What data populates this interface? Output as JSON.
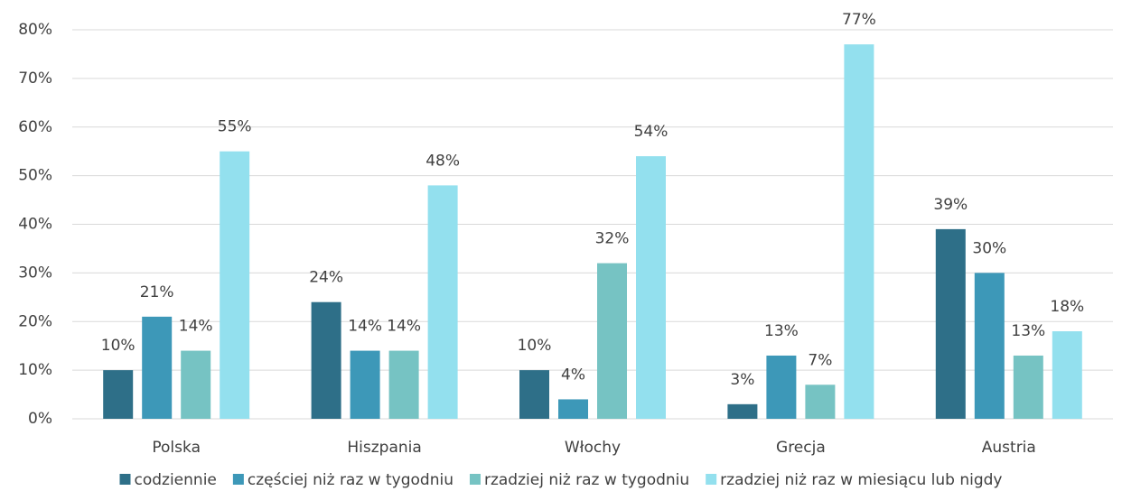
{
  "chart_data": {
    "type": "bar",
    "categories": [
      "Polska",
      "Hiszpania",
      "Włochy",
      "Grecja",
      "Austria"
    ],
    "series": [
      {
        "name": "codziennie",
        "color": "#2e6f88",
        "values": [
          10,
          24,
          10,
          3,
          39
        ],
        "value_labels": [
          "10%",
          "24%",
          "10%",
          "3%",
          "39%"
        ]
      },
      {
        "name": "częściej niż raz w tygodniu",
        "color": "#3d98b8",
        "values": [
          21,
          14,
          4,
          13,
          30
        ],
        "value_labels": [
          "21%",
          "14%",
          "4%",
          "13%",
          "30%"
        ]
      },
      {
        "name": "rzadziej niż raz w tygodniu",
        "color": "#76c3c3",
        "values": [
          14,
          14,
          32,
          7,
          13
        ],
        "value_labels": [
          "14%",
          "14%",
          "32%",
          "7%",
          "13%"
        ]
      },
      {
        "name": "rzadziej niż raz w miesiącu lub nigdy",
        "color": "#93e0ee",
        "values": [
          55,
          48,
          54,
          77,
          18
        ],
        "value_labels": [
          "55%",
          "48%",
          "54%",
          "77%",
          "18%"
        ]
      }
    ],
    "ylim": [
      0,
      80
    ],
    "yticks": [
      {
        "value": 0,
        "label": "0%"
      },
      {
        "value": 10,
        "label": "10%"
      },
      {
        "value": 20,
        "label": "20%"
      },
      {
        "value": 30,
        "label": "30%"
      },
      {
        "value": 40,
        "label": "40%"
      },
      {
        "value": 50,
        "label": "50%"
      },
      {
        "value": 60,
        "label": "60%"
      },
      {
        "value": 70,
        "label": "70%"
      },
      {
        "value": 80,
        "label": "80%"
      }
    ],
    "grid": true,
    "legend": "bottom"
  }
}
